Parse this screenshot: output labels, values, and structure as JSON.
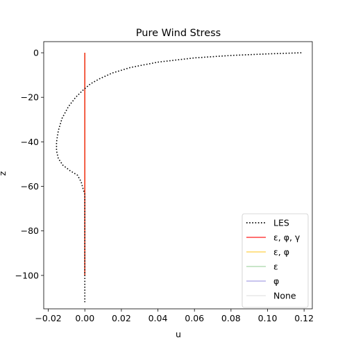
{
  "chart_data": {
    "type": "line",
    "title": "Pure Wind Stress",
    "xlabel": "u",
    "ylabel": "z",
    "xlim": [
      -0.0225,
      0.1245
    ],
    "ylim": [
      -115,
      5
    ],
    "xticks": [
      -0.02,
      0.0,
      0.02,
      0.04,
      0.06,
      0.08,
      0.1,
      0.12
    ],
    "xtick_labels": [
      "−0.02",
      "0.00",
      "0.02",
      "0.04",
      "0.06",
      "0.08",
      "0.10",
      "0.12"
    ],
    "yticks": [
      0,
      -20,
      -40,
      -60,
      -80,
      -100
    ],
    "ytick_labels": [
      "0",
      "−20",
      "−40",
      "−60",
      "−80",
      "−100"
    ],
    "grid": false,
    "legend_position": "lower-right",
    "series": [
      {
        "name": "LES",
        "color": "#000000",
        "style": "dotted",
        "points": [
          [
            0.1185,
            0
          ],
          [
            0.1,
            -0.5
          ],
          [
            0.08,
            -1.2
          ],
          [
            0.06,
            -2.3
          ],
          [
            0.04,
            -4.2
          ],
          [
            0.025,
            -6.6
          ],
          [
            0.015,
            -9.1
          ],
          [
            0.008,
            -11.7
          ],
          [
            0.003,
            -14.0
          ],
          [
            -0.001,
            -16.8
          ],
          [
            -0.005,
            -20.0
          ],
          [
            -0.009,
            -24.2
          ],
          [
            -0.0125,
            -29.5
          ],
          [
            -0.0145,
            -35.0
          ],
          [
            -0.0155,
            -40.0
          ],
          [
            -0.0155,
            -44.0
          ],
          [
            -0.0145,
            -47.5
          ],
          [
            -0.012,
            -50.5
          ],
          [
            -0.008,
            -53.0
          ],
          [
            -0.004,
            -55.0
          ],
          [
            -0.002,
            -58.0
          ],
          [
            -0.001,
            -61.0
          ],
          [
            0.0,
            -63.5
          ],
          [
            0.0,
            -70
          ],
          [
            0.0,
            -85
          ],
          [
            0.0,
            -100
          ],
          [
            0.0,
            -112
          ]
        ]
      },
      {
        "name": "ε, φ, γ",
        "color": "#ff0000",
        "opacity": 0.75,
        "points": [
          [
            0.0,
            0
          ],
          [
            0.0,
            -100
          ]
        ]
      },
      {
        "name": "ε, φ",
        "color": "#ffbf00",
        "opacity": 0.6,
        "points": [
          [
            0.0,
            0
          ],
          [
            0.0,
            -100
          ]
        ]
      },
      {
        "name": "ε",
        "color": "#2ca02c",
        "opacity": 0.35,
        "points": [
          [
            0.0,
            0
          ],
          [
            0.0,
            -100
          ]
        ]
      },
      {
        "name": "φ",
        "color": "#5a4fcf",
        "opacity": 0.45,
        "points": [
          [
            0.0,
            0
          ],
          [
            0.0,
            -100
          ]
        ]
      },
      {
        "name": "None",
        "color": "#d8d8d8",
        "opacity": 0.6,
        "points": [
          [
            0.0,
            0
          ],
          [
            0.0,
            -100
          ]
        ]
      }
    ]
  }
}
